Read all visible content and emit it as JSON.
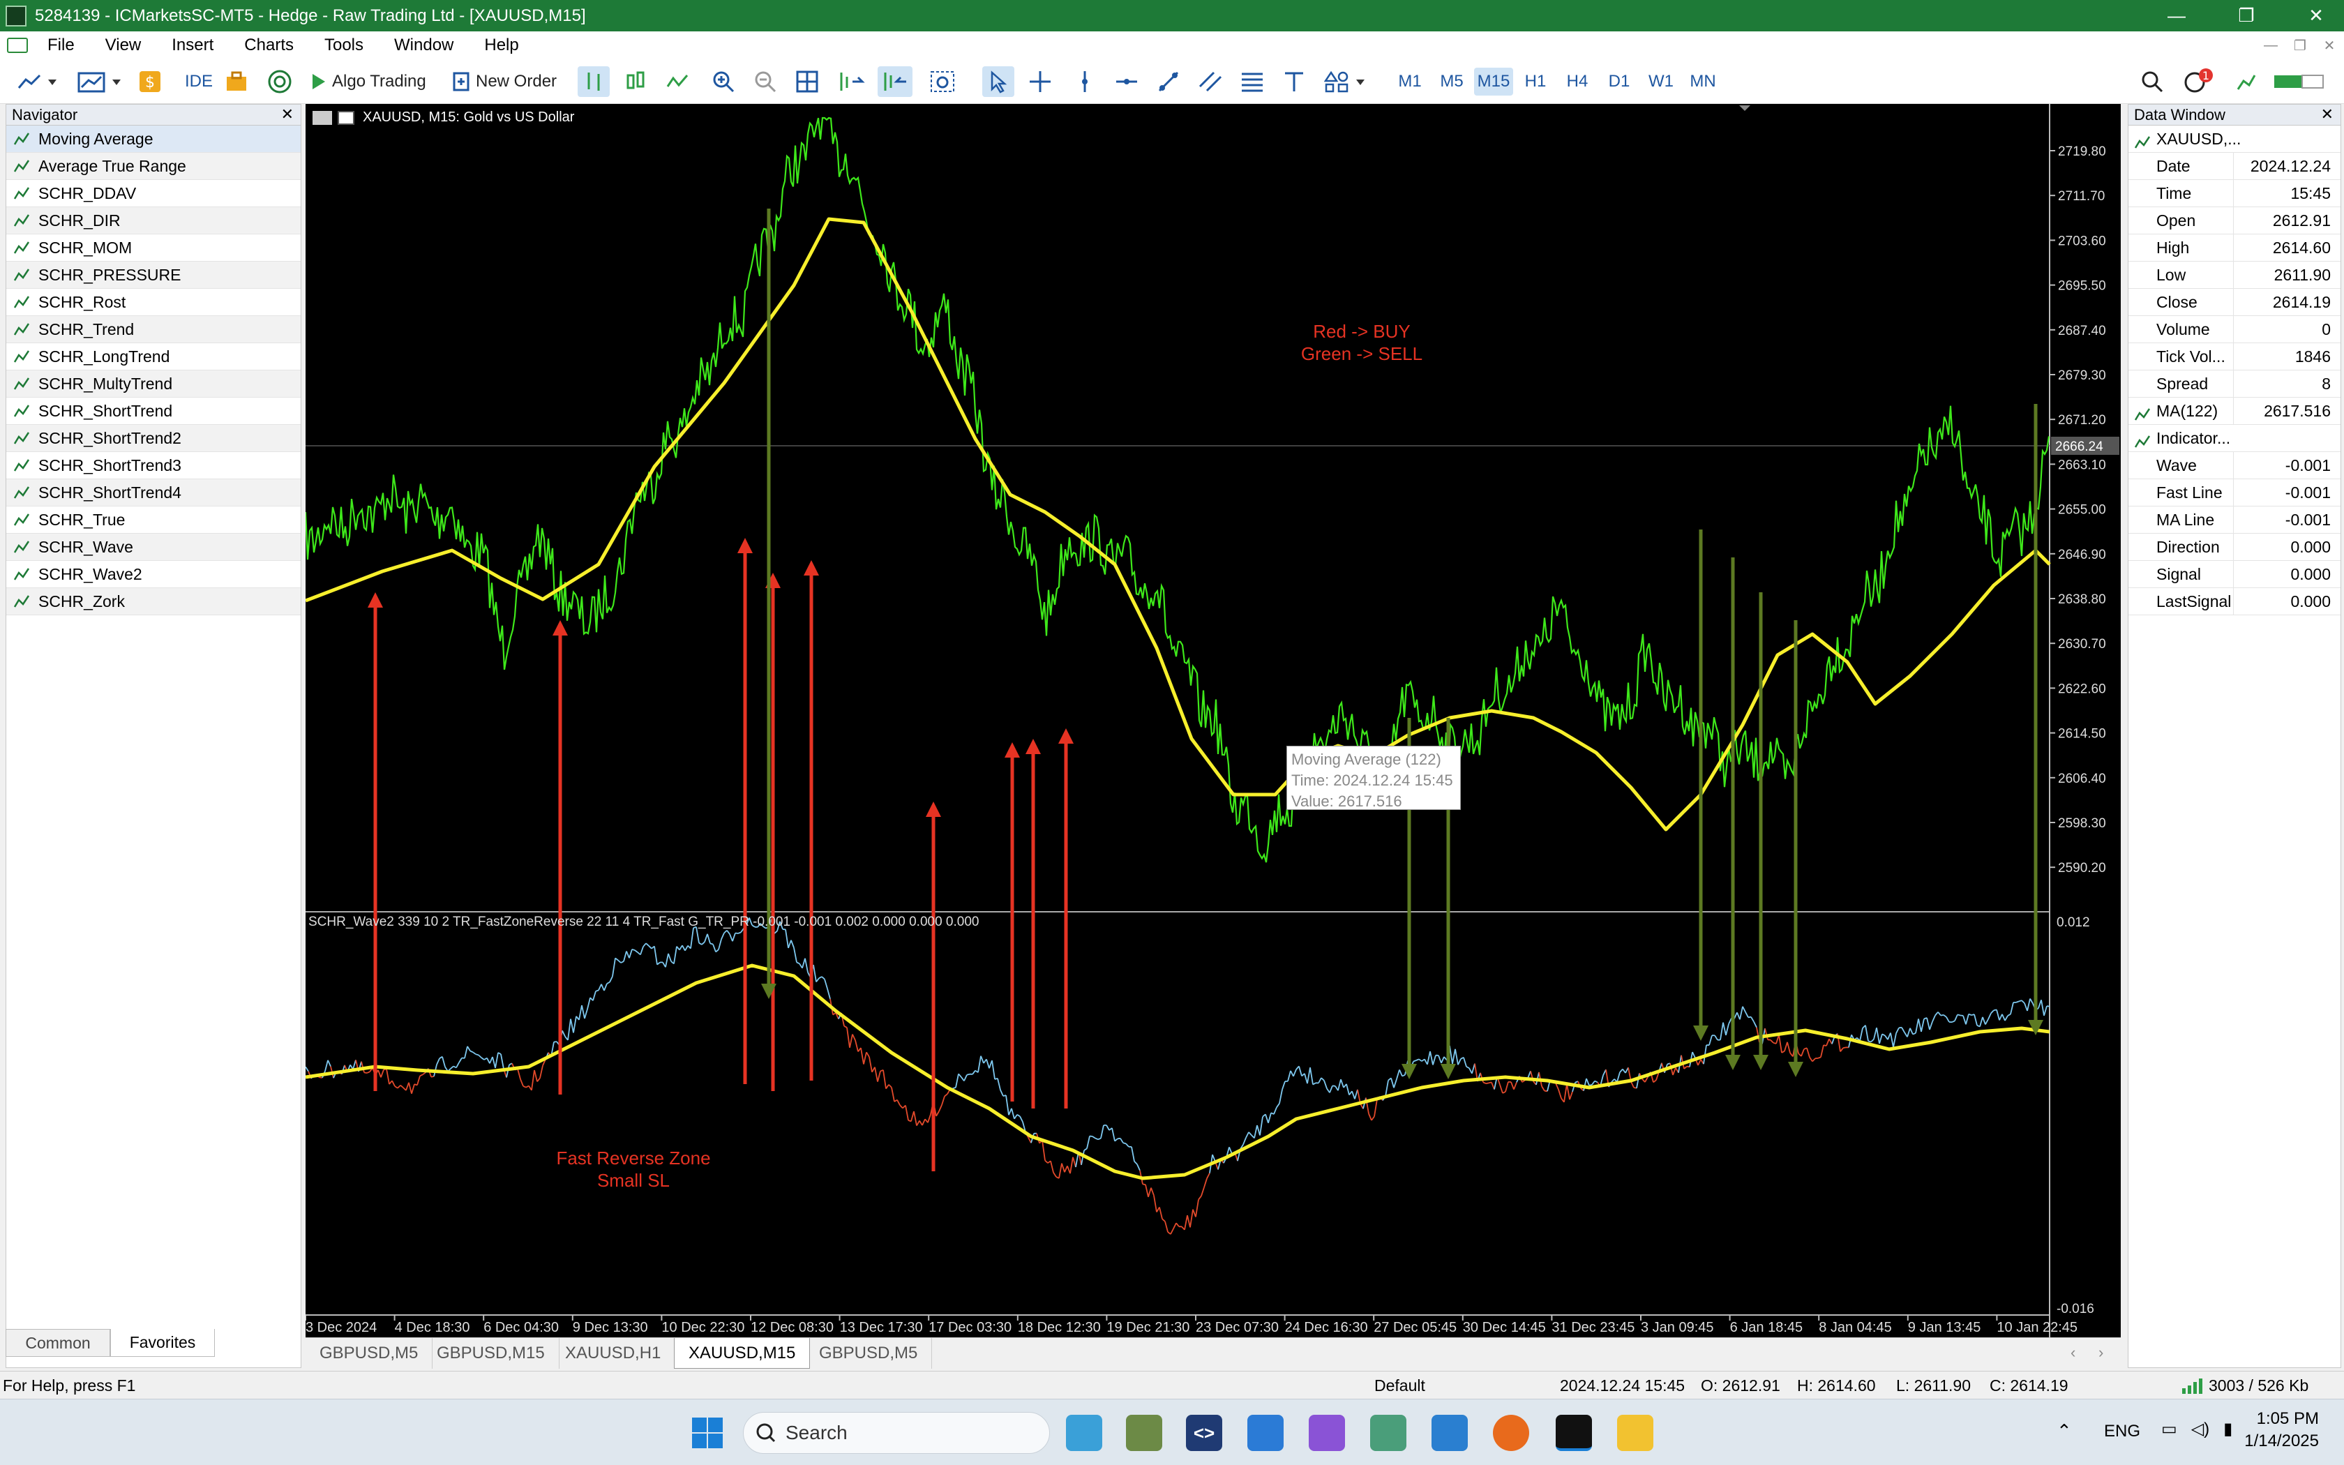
{
  "window": {
    "title": "5284139 - ICMarketsSC-MT5 - Hedge - Raw Trading Ltd - [XAUUSD,M15]",
    "minimize": "—",
    "restore": "❐",
    "close": "✕"
  },
  "menu": [
    "File",
    "View",
    "Insert",
    "Charts",
    "Tools",
    "Window",
    "Help"
  ],
  "toolbar": {
    "ide_label": "IDE",
    "algo_label": "Algo Trading",
    "new_order_label": "New Order",
    "timeframes": [
      "M1",
      "M5",
      "M15",
      "H1",
      "H4",
      "D1",
      "W1",
      "MN"
    ],
    "selected_timeframe": "M15",
    "notification_count": "1"
  },
  "navigator": {
    "title": "Navigator",
    "close": "✕",
    "items": [
      "Moving Average",
      "Average True Range",
      "SCHR_DDAV",
      "SCHR_DIR",
      "SCHR_MOM",
      "SCHR_PRESSURE",
      "SCHR_Rost",
      "SCHR_Trend",
      "SCHR_LongTrend",
      "SCHR_MultyTrend",
      "SCHR_ShortTrend",
      "SCHR_ShortTrend2",
      "SCHR_ShortTrend3",
      "SCHR_ShortTrend4",
      "SCHR_True",
      "SCHR_Wave",
      "SCHR_Wave2",
      "SCHR_Zork"
    ],
    "tabs": [
      "Common",
      "Favorites"
    ],
    "active_tab": "Favorites"
  },
  "data_window": {
    "title": "Data Window",
    "close": "✕",
    "symbol": "XAUUSD,...",
    "rows": [
      {
        "key": "Date",
        "value": "2024.12.24"
      },
      {
        "key": "Time",
        "value": "15:45"
      },
      {
        "key": "Open",
        "value": "2612.91"
      },
      {
        "key": "High",
        "value": "2614.60"
      },
      {
        "key": "Low",
        "value": "2611.90"
      },
      {
        "key": "Close",
        "value": "2614.19"
      },
      {
        "key": "Volume",
        "value": "0"
      },
      {
        "key": "Tick Vol...",
        "value": "1846"
      },
      {
        "key": "Spread",
        "value": "8"
      }
    ],
    "ma_row": {
      "key": "MA(122)",
      "value": "2617.516"
    },
    "indicator_header": "Indicator...",
    "indicator_rows": [
      {
        "key": "Wave",
        "value": "-0.001"
      },
      {
        "key": "Fast Line",
        "value": "-0.001"
      },
      {
        "key": "MA Line",
        "value": "-0.001"
      },
      {
        "key": "Direction",
        "value": "0.000"
      },
      {
        "key": "Signal",
        "value": "0.000"
      },
      {
        "key": "LastSignal",
        "value": "0.000"
      }
    ]
  },
  "chart": {
    "header": "XAUUSD, M15:  Gold vs US Dollar",
    "price_ticks": [
      "2719.80",
      "2711.70",
      "2703.60",
      "2695.50",
      "2687.40",
      "2679.30",
      "2671.20",
      "2663.10",
      "2655.00",
      "2646.90",
      "2638.80",
      "2630.70",
      "2622.60",
      "2614.50",
      "2606.40",
      "2598.30",
      "2590.20"
    ],
    "current_price": "2666.24",
    "annotation_main": [
      "Red -> BUY",
      "Green -> SELL"
    ],
    "tooltip": [
      "Moving Average (122)",
      "Time: 2024.12.24 15:45",
      "Value: 2617.516"
    ],
    "indicator_header": "SCHR_Wave2 339 10 2 TR_FastZoneReverse 22 11 4 TR_Fast G_TR_PR -0.001 -0.001 0.002 0.000 0.000 0.000",
    "indicator_top": "0.012",
    "indicator_bottom": "-0.016",
    "annotation_sub": [
      "Fast Reverse Zone",
      "Small SL"
    ],
    "time_labels": [
      "3 Dec 2024",
      "4 Dec 18:30",
      "6 Dec 04:30",
      "9 Dec 13:30",
      "10 Dec 22:30",
      "12 Dec 08:30",
      "13 Dec 17:30",
      "17 Dec 03:30",
      "18 Dec 12:30",
      "19 Dec 21:30",
      "23 Dec 07:30",
      "24 Dec 16:30",
      "27 Dec 05:45",
      "30 Dec 14:45",
      "31 Dec 23:45",
      "3 Jan 09:45",
      "6 Jan 18:45",
      "8 Jan 04:45",
      "9 Jan 13:45",
      "10 Jan 22:45"
    ],
    "colors": {
      "price": "#3ee81a",
      "ma": "#f7ef2c",
      "buy_arrow": "#e63323",
      "sell_arrow": "#5d7a22",
      "wave_up": "#7ec8ef",
      "wave_down": "#e34a2b"
    }
  },
  "chart_tabs": [
    "GBPUSD,M5",
    "GBPUSD,M15",
    "XAUUSD,H1",
    "XAUUSD,M15",
    "GBPUSD,M5"
  ],
  "active_chart_tab": "XAUUSD,M15",
  "status": {
    "help": "For Help, press F1",
    "profile": "Default",
    "datetime": "2024.12.24 15:45",
    "open": "O: 2612.91",
    "high": "H: 2614.60",
    "low": "L: 2611.90",
    "close": "C: 2614.19",
    "traffic": "3003 / 526 Kb"
  },
  "taskbar": {
    "search_placeholder": "Search",
    "lang": "ENG",
    "time": "1:05 PM",
    "date": "1/14/2025"
  }
}
